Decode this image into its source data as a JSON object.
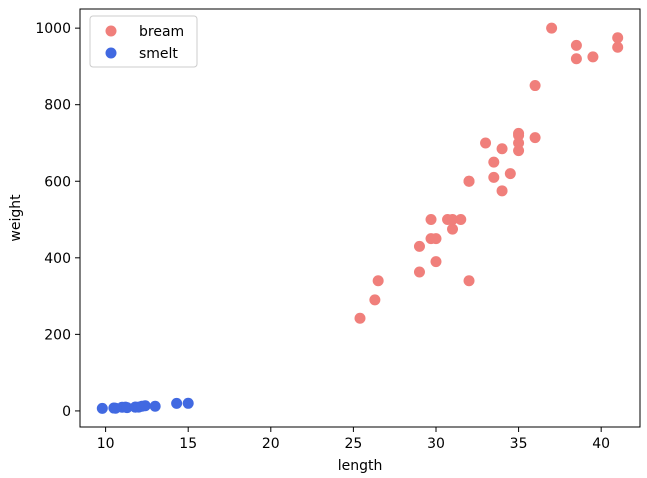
{
  "chart_data": {
    "type": "scatter",
    "title": "",
    "xlabel": "length",
    "ylabel": "weight",
    "xlim": [
      8.45,
      42.35
    ],
    "ylim": [
      -42.0,
      1050.0
    ],
    "xticks": [
      10,
      15,
      20,
      25,
      30,
      35,
      40
    ],
    "yticks": [
      0,
      200,
      400,
      600,
      800,
      1000
    ],
    "grid": false,
    "legend": "top-left",
    "series": [
      {
        "name": "bream",
        "color": "#f07f7b",
        "x": [
          25.4,
          26.3,
          26.5,
          29.0,
          29.0,
          29.7,
          29.7,
          30.0,
          30.0,
          30.7,
          31.0,
          31.0,
          31.5,
          32.0,
          32.0,
          32.0,
          33.0,
          33.5,
          33.5,
          34.0,
          34.0,
          34.5,
          35.0,
          35.0,
          35.0,
          35.0,
          36.0,
          36.0,
          37.0,
          38.5,
          38.5,
          39.5,
          41.0,
          41.0
        ],
        "y": [
          242,
          290,
          340,
          363,
          430,
          450,
          500,
          390,
          450,
          500,
          475,
          500,
          500,
          340,
          600,
          600,
          700,
          610,
          650,
          575,
          685,
          620,
          680,
          700,
          725,
          720,
          714,
          850,
          1000,
          920,
          955,
          925,
          975,
          950
        ]
      },
      {
        "name": "smelt",
        "color": "#4169e1",
        "x": [
          9.8,
          10.5,
          10.6,
          11.0,
          11.2,
          11.3,
          11.8,
          11.8,
          12.0,
          12.2,
          12.4,
          13.0,
          14.3,
          15.0
        ],
        "y": [
          6.7,
          7.5,
          7.0,
          9.7,
          9.8,
          8.7,
          10.0,
          9.9,
          9.8,
          12.2,
          13.4,
          12.2,
          19.7,
          19.9
        ]
      }
    ]
  }
}
